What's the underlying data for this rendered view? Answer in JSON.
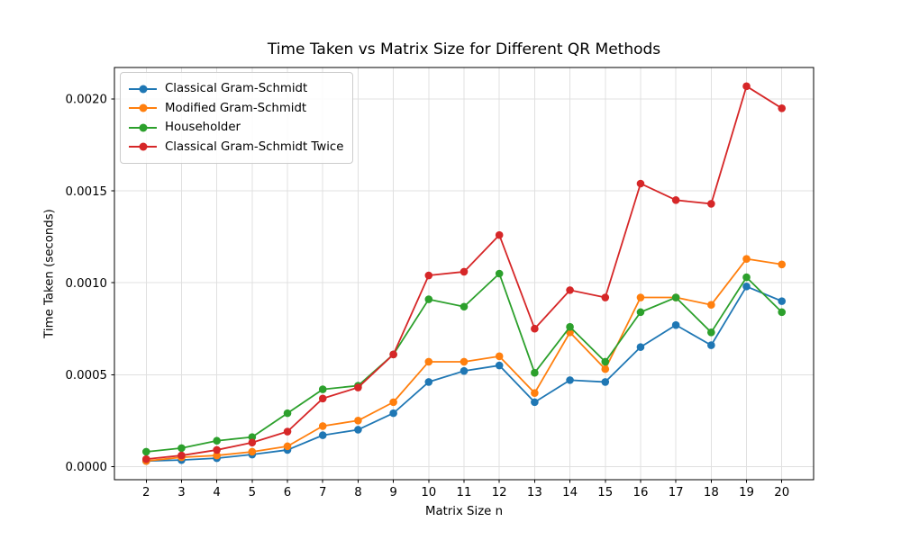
{
  "chart_data": {
    "type": "line",
    "title": "Time Taken vs Matrix Size for Different QR Methods",
    "xlabel": "Matrix Size n",
    "ylabel": "Time Taken (seconds)",
    "grid": true,
    "grid_color": "#e0e0e0",
    "background_color": "#ffffff",
    "legend_position": "upper left",
    "xlim": [
      1.1,
      20.9
    ],
    "ylim": [
      -7.2e-05,
      0.002172
    ],
    "x_ticks": [
      2,
      3,
      4,
      5,
      6,
      7,
      8,
      9,
      10,
      11,
      12,
      13,
      14,
      15,
      16,
      17,
      18,
      19,
      20
    ],
    "y_ticks": [
      0.0,
      0.0005,
      0.001,
      0.0015,
      0.002
    ],
    "y_tick_labels": [
      "0.0000",
      "0.0005",
      "0.0010",
      "0.0015",
      "0.0020"
    ],
    "x": [
      2,
      3,
      4,
      5,
      6,
      7,
      8,
      9,
      10,
      11,
      12,
      13,
      14,
      15,
      16,
      17,
      18,
      19,
      20
    ],
    "series": [
      {
        "name": "Classical Gram-Schmidt",
        "color": "#1f77b4",
        "marker": "circle",
        "values": [
          3e-05,
          3.5e-05,
          4.5e-05,
          6.5e-05,
          9e-05,
          0.00017,
          0.0002,
          0.00029,
          0.00046,
          0.00052,
          0.00055,
          0.00035,
          0.00047,
          0.00046,
          0.00065,
          0.00077,
          0.00066,
          0.00098,
          0.0009
        ]
      },
      {
        "name": "Modified Gram-Schmidt",
        "color": "#ff7f0e",
        "marker": "circle",
        "values": [
          3e-05,
          5e-05,
          6e-05,
          8e-05,
          0.00011,
          0.00022,
          0.00025,
          0.00035,
          0.00057,
          0.00057,
          0.0006,
          0.0004,
          0.00073,
          0.00053,
          0.00092,
          0.00092,
          0.00088,
          0.00113,
          0.0011
        ]
      },
      {
        "name": "Householder",
        "color": "#2ca02c",
        "marker": "circle",
        "values": [
          8e-05,
          0.0001,
          0.00014,
          0.00016,
          0.00029,
          0.00042,
          0.00044,
          0.00061,
          0.00091,
          0.00087,
          0.00105,
          0.00051,
          0.00076,
          0.00057,
          0.00084,
          0.00092,
          0.00073,
          0.00103,
          0.00084
        ]
      },
      {
        "name": "Classical Gram-Schmidt Twice",
        "color": "#d62728",
        "marker": "circle",
        "values": [
          4e-05,
          6e-05,
          9e-05,
          0.00013,
          0.00019,
          0.00037,
          0.00043,
          0.00061,
          0.00104,
          0.00106,
          0.00126,
          0.00075,
          0.00096,
          0.00092,
          0.00154,
          0.00145,
          0.00143,
          0.00207,
          0.00195
        ]
      }
    ]
  }
}
